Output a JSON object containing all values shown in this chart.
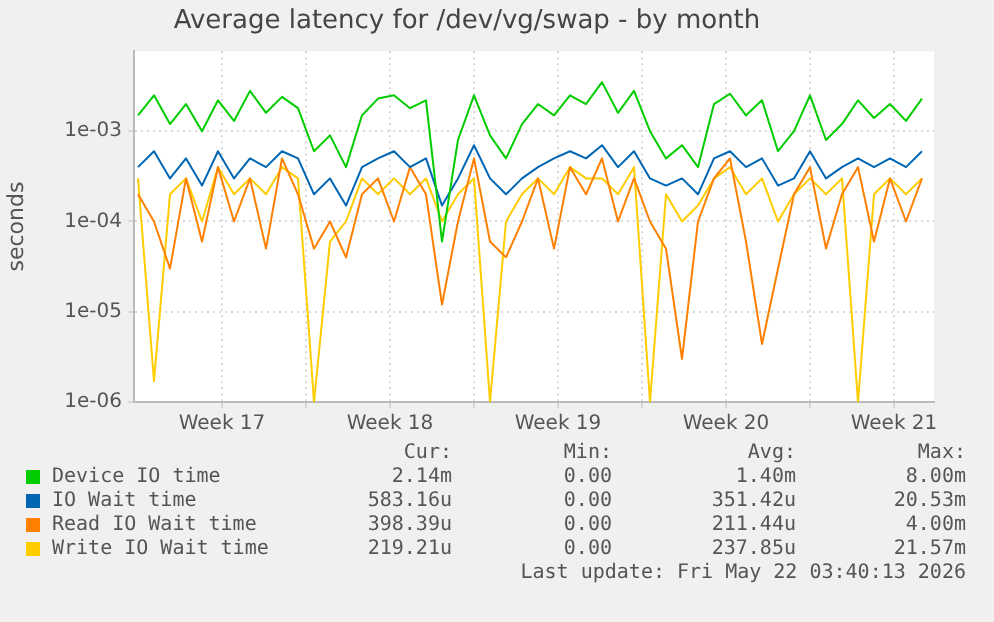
{
  "chart_data": {
    "type": "line",
    "title": "Average latency for /dev/vg/swap - by month",
    "ylabel": "seconds",
    "log": "y",
    "grid": true,
    "legend": "bottom",
    "xlim": [
      "2026-04-19T20:00",
      "2026-05-23T04:00"
    ],
    "xticks": [
      {
        "value": "2026-04-23T12:00",
        "label": "Week 17"
      },
      {
        "value": "2026-04-27T00:00",
        "label": null
      },
      {
        "value": "2026-04-30T12:00",
        "label": "Week 18"
      },
      {
        "value": "2026-05-04T00:00",
        "label": null
      },
      {
        "value": "2026-05-07T12:00",
        "label": "Week 19"
      },
      {
        "value": "2026-05-11T00:00",
        "label": null
      },
      {
        "value": "2026-05-14T12:00",
        "label": "Week 20"
      },
      {
        "value": "2026-05-18T00:00",
        "label": null
      },
      {
        "value": "2026-05-21T12:00",
        "label": "Week 21"
      }
    ],
    "ylim": [
      1e-06,
      0.0077
    ],
    "yticks": [
      {
        "value": 1e-06,
        "label": "1e-06"
      },
      {
        "value": 1e-05,
        "label": "1e-05"
      },
      {
        "value": 0.0001,
        "label": "1e-04"
      },
      {
        "value": 0.001,
        "label": "1e-03"
      }
    ],
    "x": [
      "2026-04-20T00:00",
      "2026-04-20T16:00",
      "2026-04-21T08:00",
      "2026-04-22T00:00",
      "2026-04-22T16:00",
      "2026-04-23T08:00",
      "2026-04-24T00:00",
      "2026-04-24T16:00",
      "2026-04-25T08:00",
      "2026-04-26T00:00",
      "2026-04-26T16:00",
      "2026-04-27T08:00",
      "2026-04-28T00:00",
      "2026-04-28T16:00",
      "2026-04-29T08:00",
      "2026-04-30T00:00",
      "2026-04-30T16:00",
      "2026-05-01T08:00",
      "2026-05-02T00:00",
      "2026-05-02T16:00",
      "2026-05-03T08:00",
      "2026-05-04T00:00",
      "2026-05-04T16:00",
      "2026-05-05T08:00",
      "2026-05-06T00:00",
      "2026-05-06T16:00",
      "2026-05-07T08:00",
      "2026-05-08T00:00",
      "2026-05-08T16:00",
      "2026-05-09T08:00",
      "2026-05-10T00:00",
      "2026-05-10T16:00",
      "2026-05-11T08:00",
      "2026-05-12T00:00",
      "2026-05-12T16:00",
      "2026-05-13T08:00",
      "2026-05-14T00:00",
      "2026-05-14T16:00",
      "2026-05-15T08:00",
      "2026-05-16T00:00",
      "2026-05-16T16:00",
      "2026-05-17T08:00",
      "2026-05-18T00:00",
      "2026-05-18T16:00",
      "2026-05-19T08:00",
      "2026-05-20T00:00",
      "2026-05-20T16:00",
      "2026-05-21T08:00",
      "2026-05-22T00:00",
      "2026-05-22T16:00"
    ],
    "series": [
      {
        "name": "Device IO time",
        "color": "#00cc00",
        "values": [
          0.0015,
          0.0025,
          0.0012,
          0.002,
          0.001,
          0.0022,
          0.0013,
          0.0028,
          0.0016,
          0.0024,
          0.0018,
          0.0006,
          0.0009,
          0.0004,
          0.0015,
          0.0023,
          0.0025,
          0.0018,
          0.0022,
          6e-05,
          0.0008,
          0.0025,
          0.0009,
          0.0005,
          0.0012,
          0.002,
          0.0015,
          0.0025,
          0.002,
          0.0035,
          0.0016,
          0.0028,
          0.001,
          0.0005,
          0.0007,
          0.0004,
          0.002,
          0.0026,
          0.0015,
          0.0022,
          0.0006,
          0.001,
          0.0025,
          0.0008,
          0.0012,
          0.0022,
          0.0014,
          0.002,
          0.0013,
          0.0023
        ]
      },
      {
        "name": "IO Wait time",
        "color": "#0066b3",
        "values": [
          0.0004,
          0.0006,
          0.0003,
          0.0005,
          0.00025,
          0.0006,
          0.0003,
          0.0005,
          0.0004,
          0.0006,
          0.0005,
          0.0002,
          0.0003,
          0.00015,
          0.0004,
          0.0005,
          0.0006,
          0.0004,
          0.0005,
          0.00015,
          0.0003,
          0.0007,
          0.0003,
          0.0002,
          0.0003,
          0.0004,
          0.0005,
          0.0006,
          0.0005,
          0.0007,
          0.0004,
          0.0006,
          0.0003,
          0.00025,
          0.0003,
          0.0002,
          0.0005,
          0.0006,
          0.0004,
          0.0005,
          0.00025,
          0.0003,
          0.0006,
          0.0003,
          0.0004,
          0.0005,
          0.0004,
          0.0005,
          0.0004,
          0.0006
        ]
      },
      {
        "name": "Read IO Wait time",
        "color": "#ff8000",
        "values": [
          0.0002,
          0.0001,
          3e-05,
          0.0003,
          6e-05,
          0.0004,
          0.0001,
          0.0003,
          5e-05,
          0.0005,
          0.0002,
          5e-05,
          0.0001,
          4e-05,
          0.0002,
          0.0003,
          0.0001,
          0.0004,
          0.0002,
          1.2e-05,
          0.0001,
          0.0005,
          6e-05,
          4e-05,
          0.0001,
          0.0003,
          5e-05,
          0.0004,
          0.0002,
          0.0005,
          0.0001,
          0.0003,
          0.0001,
          5e-05,
          3e-06,
          0.0001,
          0.0003,
          0.0005,
          6e-05,
          4.4e-06,
          3e-05,
          0.0002,
          0.0004,
          5e-05,
          0.0002,
          0.0004,
          6e-05,
          0.0003,
          0.0001,
          0.0003
        ]
      },
      {
        "name": "Write IO Wait time",
        "color": "#ffcc00",
        "values": [
          0.0003,
          1.7e-06,
          0.0002,
          0.0003,
          0.0001,
          0.0004,
          0.0002,
          0.0003,
          0.0002,
          0.0004,
          0.0003,
          1e-06,
          6e-05,
          0.0001,
          0.0003,
          0.0002,
          0.0003,
          0.0002,
          0.0003,
          0.0001,
          0.0002,
          0.0003,
          1e-06,
          0.0001,
          0.0002,
          0.0003,
          0.0002,
          0.0004,
          0.0003,
          0.0003,
          0.0002,
          0.0004,
          1e-06,
          0.0002,
          0.0001,
          0.00015,
          0.0003,
          0.0004,
          0.0002,
          0.0003,
          0.0001,
          0.0002,
          0.0003,
          0.0002,
          0.0003,
          1e-06,
          0.0002,
          0.0003,
          0.0002,
          0.0003
        ]
      }
    ],
    "annotations": [
      "Cur:",
      "Min:",
      "Avg:",
      "Max:",
      "2.14m",
      "0.00",
      "1.40m",
      "8.00m",
      "583.16u",
      "0.00",
      "351.42u",
      "20.53m",
      "398.39u",
      "0.00",
      "211.44u",
      "4.00m",
      "219.21u",
      "0.00",
      "237.85u",
      "21.57m",
      "Last update: Fri May 22 03:40:13 2026"
    ]
  }
}
